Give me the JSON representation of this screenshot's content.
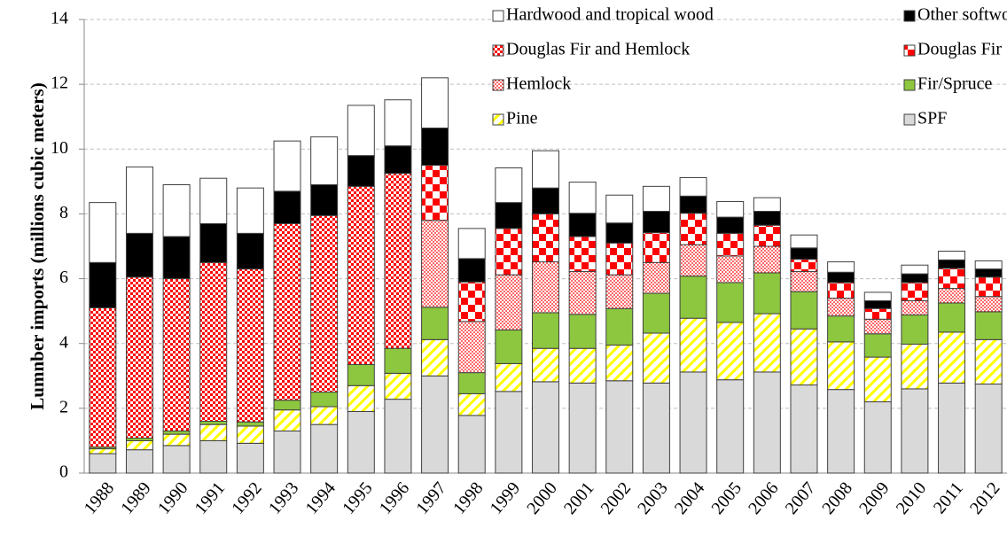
{
  "chart_data": {
    "type": "stacked_bar",
    "y_label": "Lumnber imports (millions cubic meters)",
    "categories": [
      "1988",
      "1989",
      "1990",
      "1991",
      "1992",
      "1993",
      "1994",
      "1995",
      "1996",
      "1997",
      "1998",
      "1999",
      "2000",
      "2001",
      "2002",
      "2003",
      "2004",
      "2005",
      "2006",
      "2007",
      "2008",
      "2009",
      "2010",
      "2011",
      "2012"
    ],
    "ylim": [
      0,
      14
    ],
    "yticks": [
      0,
      2,
      4,
      6,
      8,
      10,
      12,
      14
    ],
    "grid": true,
    "legend": "top-right",
    "series": [
      {
        "name": "SPF",
        "color": "#d9d9d9",
        "values": [
          0.6,
          0.72,
          0.85,
          1.0,
          0.92,
          1.3,
          1.5,
          1.9,
          2.28,
          3.0,
          1.78,
          2.52,
          2.82,
          2.78,
          2.85,
          2.78,
          3.12,
          2.88,
          3.12,
          2.72,
          2.58,
          2.2,
          2.6,
          2.78,
          2.75
        ]
      },
      {
        "name": "Pine",
        "color": "#ffff00",
        "values": [
          0.15,
          0.28,
          0.35,
          0.5,
          0.53,
          0.65,
          0.55,
          0.8,
          0.8,
          1.12,
          0.67,
          0.86,
          1.03,
          1.07,
          1.1,
          1.54,
          1.66,
          1.77,
          1.8,
          1.73,
          1.47,
          1.38,
          1.38,
          1.57,
          1.37
        ]
      },
      {
        "name": "Fir/Spruce",
        "color": "#8dc63f",
        "values": [
          0.05,
          0.08,
          0.1,
          0.1,
          0.13,
          0.3,
          0.45,
          0.65,
          0.77,
          1.0,
          0.65,
          1.04,
          1.1,
          1.05,
          1.13,
          1.23,
          1.3,
          1.23,
          1.26,
          1.15,
          0.8,
          0.72,
          0.9,
          0.9,
          0.86
        ]
      },
      {
        "name": "Hemlock",
        "color": "#ff0000",
        "values": [
          0,
          0,
          0,
          0,
          0,
          0,
          0,
          0,
          0,
          2.68,
          1.58,
          1.7,
          1.57,
          1.32,
          1.04,
          0.95,
          0.97,
          0.82,
          0.82,
          0.62,
          0.55,
          0.45,
          0.44,
          0.45,
          0.47
        ]
      },
      {
        "name": "Douglas Fir",
        "color": "#ff0000",
        "values": [
          0,
          0,
          0,
          0,
          0,
          0,
          0,
          0,
          0,
          1.7,
          1.22,
          1.43,
          1.48,
          1.08,
          0.98,
          0.92,
          0.97,
          0.7,
          0.65,
          0.38,
          0.48,
          0.33,
          0.56,
          0.62,
          0.6
        ]
      },
      {
        "name": "Douglas Fir and Hemlock",
        "color": "#ff0000",
        "values": [
          4.3,
          4.97,
          4.7,
          4.9,
          4.72,
          5.45,
          5.45,
          5.5,
          5.4,
          0,
          0,
          0,
          0,
          0,
          0,
          0,
          0,
          0,
          0,
          0,
          0,
          0,
          0,
          0,
          0
        ]
      },
      {
        "name": "Other softwood",
        "color": "#000000",
        "values": [
          1.4,
          1.35,
          1.3,
          1.2,
          1.1,
          1.0,
          0.95,
          0.95,
          0.85,
          1.15,
          0.72,
          0.8,
          0.8,
          0.72,
          0.62,
          0.66,
          0.53,
          0.5,
          0.43,
          0.35,
          0.32,
          0.24,
          0.27,
          0.26,
          0.25
        ]
      },
      {
        "name": "Hardwood and tropical wood",
        "color": "#ffffff",
        "values": [
          1.85,
          2.05,
          1.6,
          1.4,
          1.4,
          1.55,
          1.48,
          1.55,
          1.42,
          1.55,
          0.93,
          1.07,
          1.15,
          0.96,
          0.86,
          0.77,
          0.57,
          0.48,
          0.42,
          0.4,
          0.32,
          0.26,
          0.27,
          0.27,
          0.25
        ]
      }
    ]
  }
}
